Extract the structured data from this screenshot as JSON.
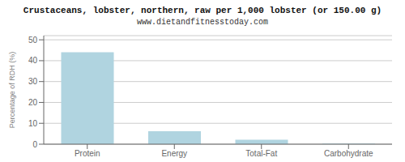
{
  "chart_data": {
    "type": "bar",
    "title": "Crustaceans, lobster, northern, raw per 1,000 lobster (or 150.00 g)",
    "subtitle": "www.dietandfitnesstoday.com",
    "ylabel": "Percentage of RDH (%)",
    "categories": [
      "Protein",
      "Energy",
      "Total-Fat",
      "Carbohydrate"
    ],
    "values": [
      44.0,
      6.2,
      2.1,
      0.3
    ],
    "color": "#b0d4e0",
    "ylim": [
      0,
      52
    ],
    "yticks": [
      0,
      10,
      20,
      30,
      40,
      50
    ],
    "grid": true
  }
}
